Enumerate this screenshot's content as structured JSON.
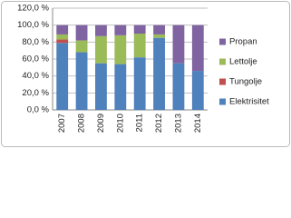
{
  "chart_data": {
    "type": "stacked_bar",
    "categories": [
      "2007",
      "2008",
      "2009",
      "2010",
      "2011",
      "2012",
      "2013",
      "2014"
    ],
    "series": [
      {
        "name": "Elektrisitet",
        "color": "#4f81bd",
        "values": [
          79,
          68,
          55,
          54,
          62,
          85,
          55,
          46
        ]
      },
      {
        "name": "Tungolje",
        "color": "#c0504d",
        "values": [
          4,
          0,
          0,
          0,
          0,
          0,
          0,
          0
        ]
      },
      {
        "name": "Lettolje",
        "color": "#9bbb59",
        "values": [
          6,
          14,
          32,
          34,
          28,
          4,
          0,
          0
        ]
      },
      {
        "name": "Propan",
        "color": "#8064a2",
        "values": [
          11,
          18,
          13,
          12,
          10,
          11,
          45,
          54
        ]
      }
    ],
    "ylim": [
      0,
      120
    ],
    "yticks": [
      {
        "value": 0,
        "label": "0,0 %"
      },
      {
        "value": 20,
        "label": "20,0 %"
      },
      {
        "value": 40,
        "label": "40,0 %"
      },
      {
        "value": 60,
        "label": "60,0 %"
      },
      {
        "value": 80,
        "label": "80,0 %"
      },
      {
        "value": 100,
        "label": "100,0 %"
      },
      {
        "value": 120,
        "label": "120,0 %"
      }
    ],
    "grid": true,
    "legend": "right"
  }
}
